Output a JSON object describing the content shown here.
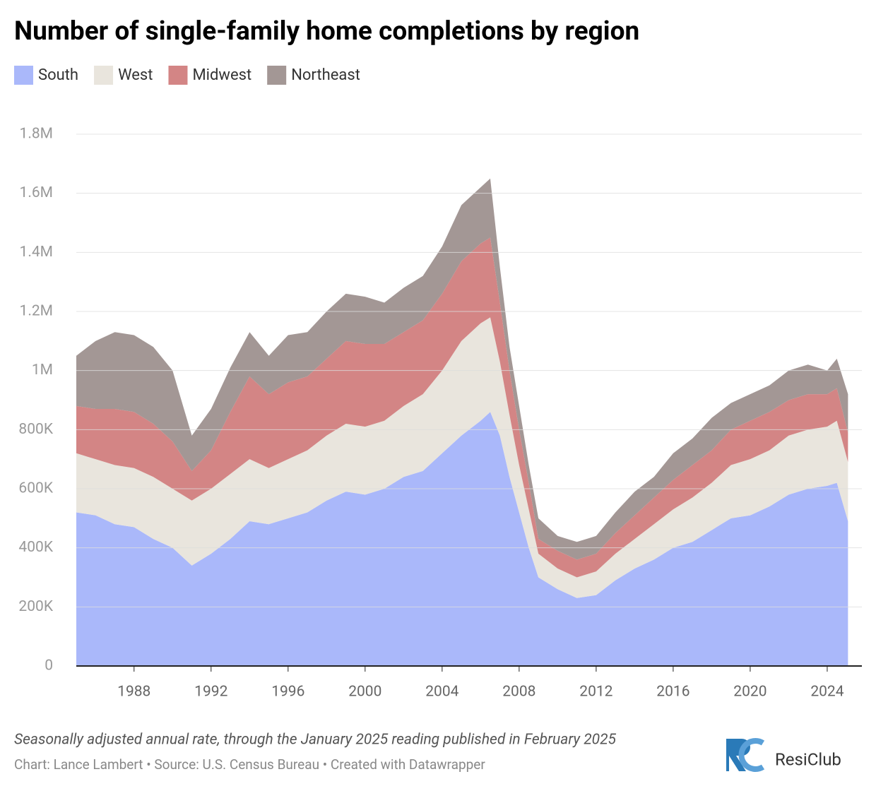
{
  "chart_data": {
    "type": "stacked_area",
    "title": "Number of single-family home completions by region",
    "note": "Seasonally adjusted annual rate, through the January 2025 reading published in February 2025",
    "credit": "Chart: Lance Lambert • Source: U.S. Census Bureau • Created with Datawrapper",
    "logo": "ResiClub",
    "x": [
      1985,
      1986,
      1987,
      1988,
      1989,
      1990,
      1991,
      1992,
      1993,
      1994,
      1995,
      1996,
      1997,
      1998,
      1999,
      2000,
      2001,
      2002,
      2003,
      2004,
      2005,
      2006,
      2006.5,
      2007,
      2007.5,
      2008,
      2008.5,
      2009,
      2010,
      2011,
      2012,
      2013,
      2014,
      2015,
      2016,
      2017,
      2018,
      2019,
      2020,
      2021,
      2022,
      2023,
      2024,
      2024.5,
      2025.08
    ],
    "series": [
      {
        "name": "South",
        "color": "#aab8fa",
        "values": [
          520000,
          510000,
          480000,
          470000,
          430000,
          400000,
          340000,
          380000,
          430000,
          490000,
          480000,
          500000,
          520000,
          560000,
          590000,
          580000,
          600000,
          640000,
          660000,
          720000,
          780000,
          830000,
          860000,
          780000,
          640000,
          520000,
          400000,
          300000,
          260000,
          230000,
          240000,
          290000,
          330000,
          360000,
          400000,
          420000,
          460000,
          500000,
          510000,
          540000,
          580000,
          600000,
          610000,
          620000,
          490000
        ]
      },
      {
        "name": "West",
        "color": "#e9e5dd",
        "values": [
          200000,
          190000,
          200000,
          200000,
          210000,
          200000,
          220000,
          220000,
          220000,
          210000,
          190000,
          200000,
          210000,
          220000,
          230000,
          230000,
          230000,
          240000,
          260000,
          280000,
          320000,
          330000,
          320000,
          250000,
          210000,
          160000,
          130000,
          80000,
          70000,
          70000,
          80000,
          90000,
          100000,
          120000,
          130000,
          150000,
          160000,
          180000,
          190000,
          190000,
          200000,
          200000,
          200000,
          210000,
          200000
        ]
      },
      {
        "name": "Midwest",
        "color": "#d38585",
        "values": [
          160000,
          170000,
          190000,
          190000,
          180000,
          160000,
          100000,
          130000,
          210000,
          280000,
          250000,
          260000,
          250000,
          260000,
          280000,
          280000,
          260000,
          250000,
          250000,
          260000,
          270000,
          270000,
          270000,
          200000,
          150000,
          120000,
          90000,
          50000,
          60000,
          60000,
          60000,
          70000,
          80000,
          90000,
          100000,
          110000,
          110000,
          120000,
          130000,
          130000,
          120000,
          120000,
          110000,
          110000,
          100000
        ]
      },
      {
        "name": "Northeast",
        "color": "#a39795",
        "values": [
          170000,
          230000,
          260000,
          260000,
          260000,
          240000,
          120000,
          140000,
          150000,
          150000,
          130000,
          160000,
          150000,
          160000,
          160000,
          160000,
          140000,
          150000,
          150000,
          160000,
          190000,
          190000,
          200000,
          120000,
          80000,
          80000,
          60000,
          70000,
          50000,
          60000,
          60000,
          70000,
          80000,
          70000,
          90000,
          90000,
          110000,
          90000,
          90000,
          90000,
          100000,
          100000,
          80000,
          100000,
          130000
        ]
      }
    ],
    "xlim": [
      1985,
      2025.8
    ],
    "xticks": [
      1988,
      1992,
      1996,
      2000,
      2004,
      2008,
      2012,
      2016,
      2020,
      2024
    ],
    "ylim": [
      0,
      1800000
    ],
    "yticks": [
      0,
      {
        "value": 200000,
        "label": "200K"
      },
      {
        "value": 400000,
        "label": "400K"
      },
      {
        "value": 600000,
        "label": "600K"
      },
      {
        "value": 800000,
        "label": "800K"
      },
      {
        "value": 1000000,
        "label": "1M"
      },
      {
        "value": 1200000,
        "label": "1.2M"
      },
      {
        "value": 1400000,
        "label": "1.4M"
      },
      {
        "value": 1600000,
        "label": "1.6M"
      },
      {
        "value": 1800000,
        "label": "1.8M"
      }
    ],
    "grid": true
  }
}
